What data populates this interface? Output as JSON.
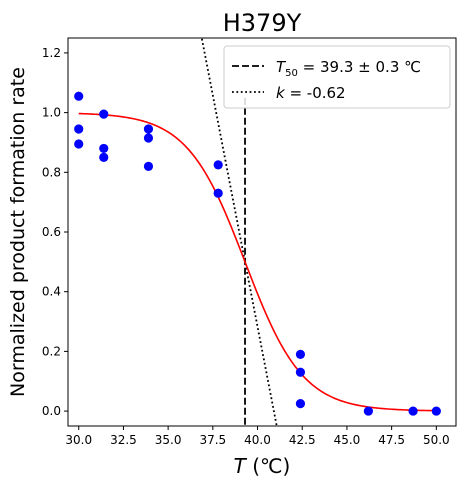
{
  "chart_data": {
    "type": "scatter",
    "title": "H379Y",
    "xlabel": {
      "italic": "T",
      "rest": " (℃)"
    },
    "ylabel": "Normalized product formation rate",
    "xlim": [
      29.4,
      51.1
    ],
    "ylim": [
      -0.05,
      1.25
    ],
    "xticks": [
      "30.0",
      "32.5",
      "35.0",
      "37.5",
      "40.0",
      "42.5",
      "45.0",
      "47.5",
      "50.0"
    ],
    "yticks": [
      "0.0",
      "0.2",
      "0.4",
      "0.6",
      "0.8",
      "1.0",
      "1.2"
    ],
    "grid": false,
    "legend_position": "top-right",
    "legend": [
      {
        "style": "dashed",
        "sym": "T",
        "sub": "50",
        "text": " = 39.3 ± 0.3 ℃"
      },
      {
        "style": "dotted",
        "sym": "k",
        "sub": "",
        "text": " = -0.62"
      }
    ],
    "points": [
      {
        "x": 30.0,
        "y": 1.055
      },
      {
        "x": 30.0,
        "y": 0.945
      },
      {
        "x": 30.0,
        "y": 0.895
      },
      {
        "x": 31.4,
        "y": 0.995
      },
      {
        "x": 31.4,
        "y": 0.88
      },
      {
        "x": 31.4,
        "y": 0.85
      },
      {
        "x": 33.9,
        "y": 0.945
      },
      {
        "x": 33.9,
        "y": 0.915
      },
      {
        "x": 33.9,
        "y": 0.82
      },
      {
        "x": 37.8,
        "y": 0.825
      },
      {
        "x": 37.8,
        "y": 0.73
      },
      {
        "x": 42.4,
        "y": 0.19
      },
      {
        "x": 42.4,
        "y": 0.13
      },
      {
        "x": 42.4,
        "y": 0.025
      },
      {
        "x": 46.2,
        "y": 0.0
      },
      {
        "x": 48.7,
        "y": 0.0
      },
      {
        "x": 50.0,
        "y": 0.0
      }
    ],
    "fit": {
      "t50": 39.3,
      "k": 0.62,
      "top": 1.0,
      "bottom": 0.0,
      "x_range": [
        30.0,
        50.0
      ]
    },
    "t50_line": {
      "x": 39.3,
      "y_top": 1.05
    },
    "slope_line": {
      "x0": 39.3,
      "y0": 0.5,
      "slope": -0.31
    },
    "colors": {
      "points": "#0000ff",
      "fit": "#ff0000",
      "lines": "#000000"
    }
  }
}
